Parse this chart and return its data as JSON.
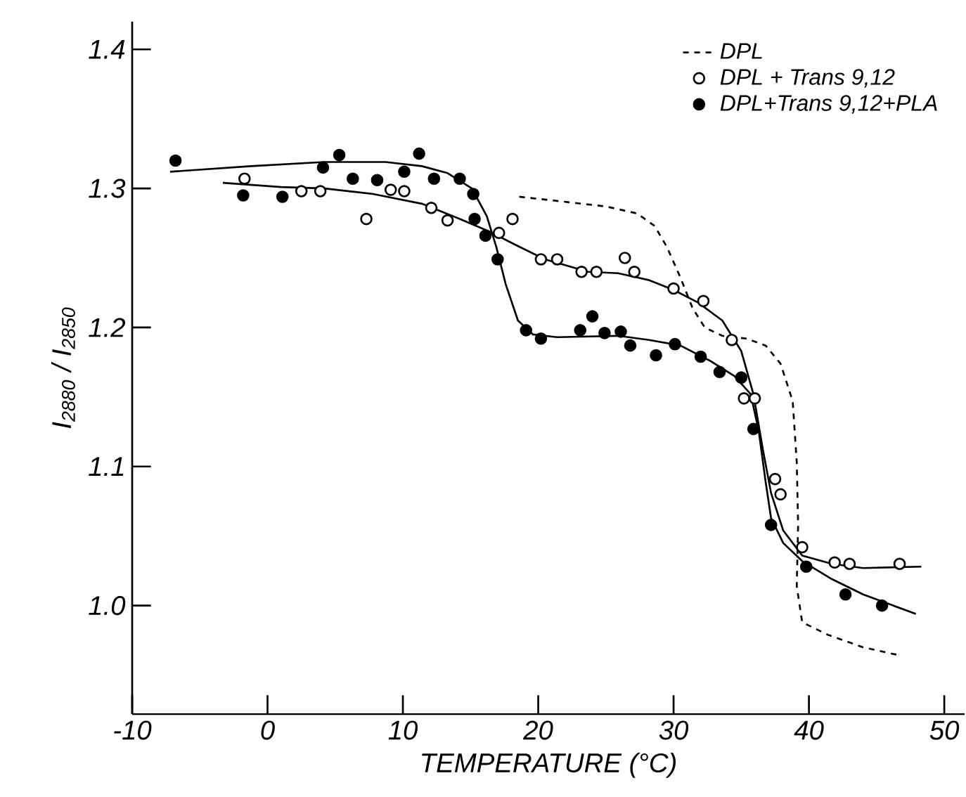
{
  "chart_data": {
    "type": "scatter",
    "xlabel": "TEMPERATURE (°C)",
    "ylabel": "I$_{2880}$ / I$_{2850}$",
    "xlim": [
      -10,
      51.5
    ],
    "ylim": [
      0.922,
      1.42
    ],
    "xticks": [
      -10,
      0,
      10,
      20,
      30,
      40,
      50
    ],
    "yticks": [
      {
        "value": 1.0,
        "label": "1.0"
      },
      {
        "value": 1.1,
        "label": "1.1"
      },
      {
        "value": 1.2,
        "label": "1.2"
      },
      {
        "value": 1.3,
        "label": "1.3"
      },
      {
        "value": 1.4,
        "label": "1.4"
      }
    ],
    "legend": "top right",
    "series": [
      {
        "name": "DPL",
        "type": "line",
        "line_style": "dashed",
        "marker": "none",
        "color": "#000000",
        "x": [
          18.6,
          21.4,
          25.0,
          27.3,
          28.6,
          29.5,
          30.5,
          31.4,
          32.3,
          33.6,
          35.4,
          36.8,
          37.9,
          38.8,
          39.1,
          39.2,
          39.1,
          39.5,
          41.4,
          44.0,
          46.8
        ],
        "values": [
          1.294,
          1.291,
          1.287,
          1.282,
          1.273,
          1.258,
          1.236,
          1.214,
          1.2,
          1.194,
          1.192,
          1.187,
          1.174,
          1.147,
          1.103,
          1.058,
          1.014,
          0.988,
          0.979,
          0.97,
          0.964
        ]
      },
      {
        "name": "DPL + Trans 9,12",
        "marker": "circle",
        "color": "#ffffff",
        "x": [
          -1.7,
          2.5,
          3.9,
          7.3,
          9.1,
          10.1,
          12.1,
          13.3,
          17.1,
          18.1,
          20.2,
          21.4,
          23.2,
          24.3,
          26.4,
          27.1,
          30.0,
          32.2,
          34.3,
          35.2,
          36.0,
          37.5,
          37.9,
          39.5,
          41.9,
          43.0,
          46.7
        ],
        "values": [
          1.307,
          1.298,
          1.298,
          1.278,
          1.299,
          1.298,
          1.286,
          1.277,
          1.268,
          1.278,
          1.249,
          1.249,
          1.24,
          1.24,
          1.25,
          1.24,
          1.228,
          1.219,
          1.191,
          1.149,
          1.149,
          1.091,
          1.08,
          1.042,
          1.031,
          1.03,
          1.03
        ]
      },
      {
        "name": "DPL+Trans 9,12+PLA",
        "marker": "circle",
        "color": "#000000",
        "x": [
          -6.8,
          -1.8,
          1.1,
          4.1,
          5.3,
          6.3,
          8.1,
          10.1,
          11.2,
          12.3,
          14.2,
          15.2,
          15.3,
          16.1,
          17.0,
          19.1,
          20.2,
          23.1,
          24.0,
          24.9,
          26.1,
          26.8,
          28.7,
          30.1,
          32.0,
          33.4,
          35.0,
          35.9,
          37.2,
          39.8,
          42.7,
          45.4
        ],
        "values": [
          1.32,
          1.295,
          1.294,
          1.315,
          1.324,
          1.307,
          1.306,
          1.312,
          1.325,
          1.307,
          1.307,
          1.296,
          1.278,
          1.266,
          1.249,
          1.198,
          1.192,
          1.198,
          1.208,
          1.196,
          1.197,
          1.187,
          1.18,
          1.188,
          1.179,
          1.168,
          1.164,
          1.127,
          1.058,
          1.028,
          1.008,
          1.0
        ]
      },
      {
        "type": "line",
        "line_style": "solid",
        "marker": "none",
        "color": "#000000",
        "x": [
          -3.3,
          1.0,
          4.2,
          7.8,
          11.4,
          14.2,
          16.4,
          18.2,
          20.5,
          23.7,
          25.9,
          28.2,
          30.0,
          31.8,
          33.6,
          35.0,
          35.9,
          36.6,
          37.2,
          38.1,
          39.5,
          41.7,
          44.0,
          48.3
        ],
        "values": [
          1.304,
          1.301,
          1.3,
          1.296,
          1.289,
          1.278,
          1.269,
          1.26,
          1.249,
          1.24,
          1.239,
          1.234,
          1.227,
          1.218,
          1.205,
          1.183,
          1.152,
          1.112,
          1.081,
          1.054,
          1.036,
          1.03,
          1.027,
          1.028
        ]
      },
      {
        "type": "line",
        "line_style": "solid",
        "marker": "none",
        "color": "#000000",
        "x": [
          -7.2,
          -1.2,
          4.2,
          8.7,
          11.4,
          13.3,
          15.1,
          16.2,
          16.9,
          17.6,
          18.5,
          19.6,
          21.4,
          25.9,
          28.2,
          30.5,
          32.7,
          34.5,
          35.7,
          36.3,
          36.8,
          37.2,
          38.1,
          39.5,
          41.7,
          44.0,
          47.9
        ],
        "values": [
          1.312,
          1.316,
          1.319,
          1.319,
          1.316,
          1.311,
          1.3,
          1.28,
          1.258,
          1.231,
          1.205,
          1.195,
          1.193,
          1.194,
          1.191,
          1.187,
          1.176,
          1.165,
          1.152,
          1.125,
          1.089,
          1.063,
          1.045,
          1.032,
          1.019,
          1.008,
          0.994
        ]
      }
    ]
  }
}
